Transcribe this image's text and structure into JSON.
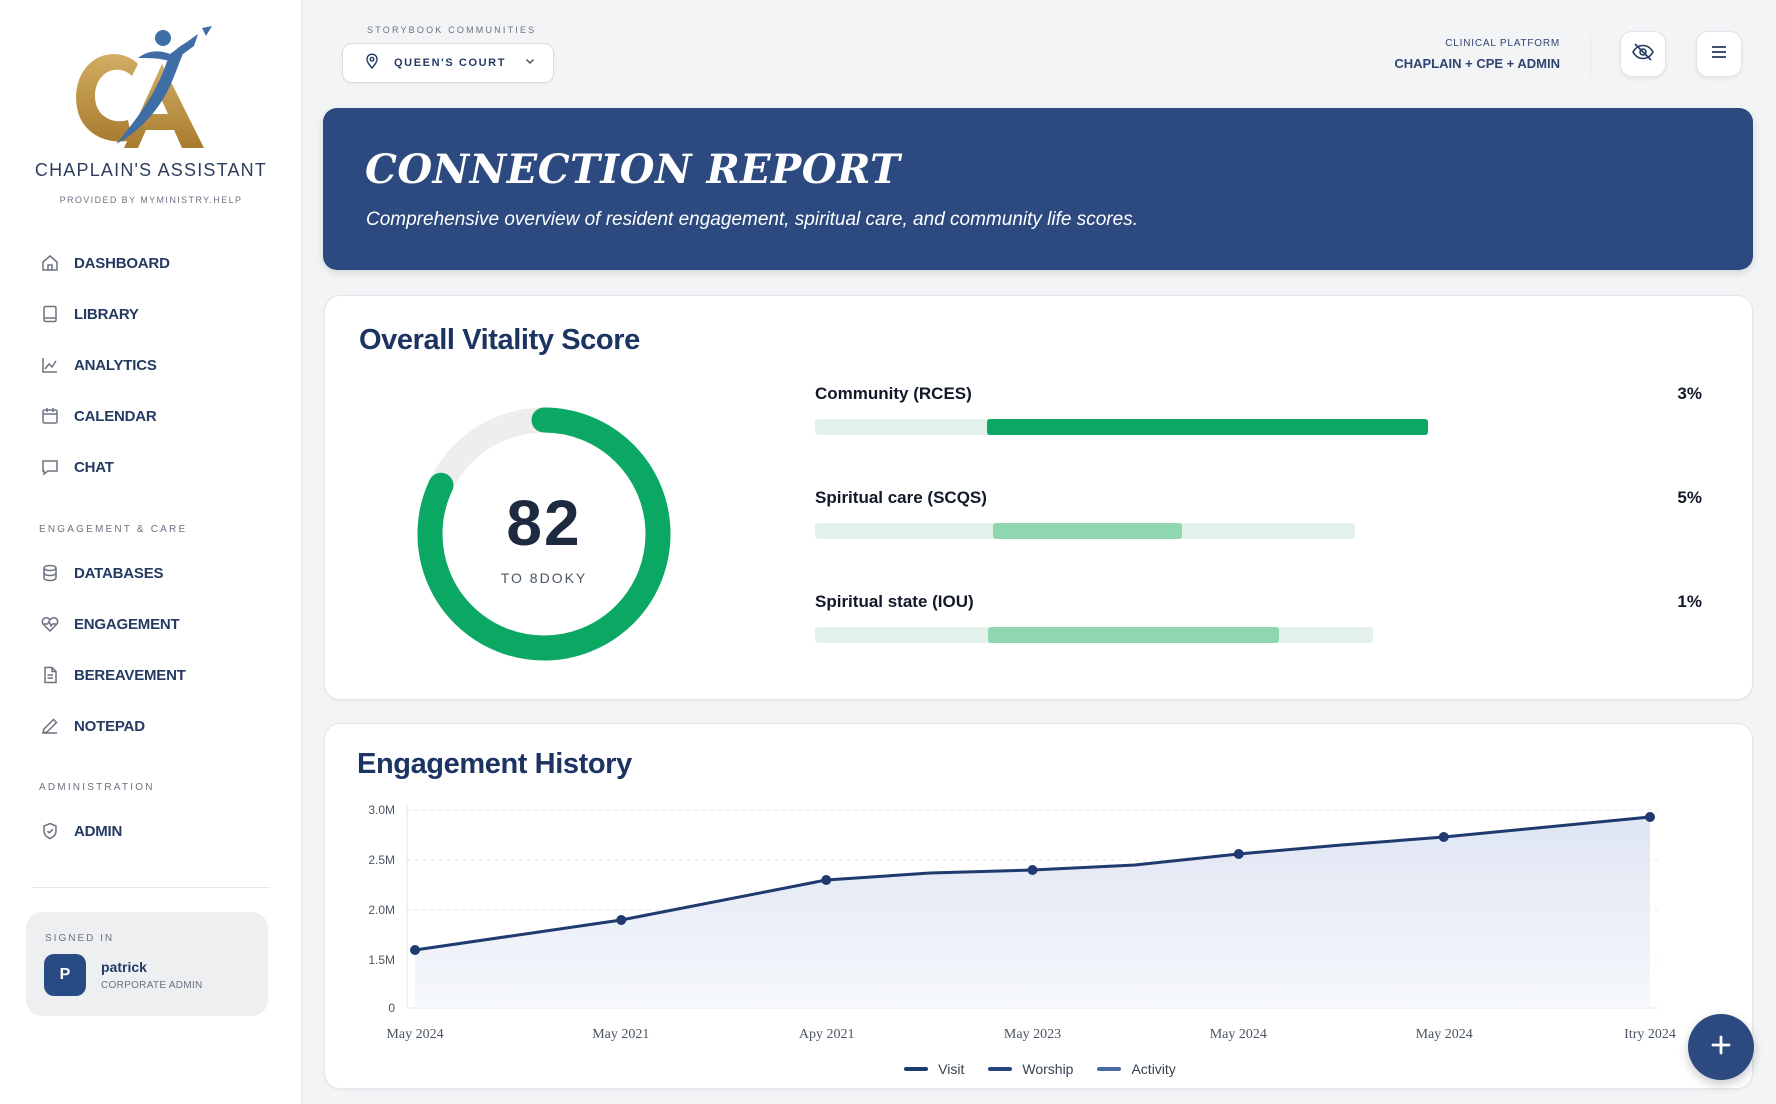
{
  "brand": {
    "name": "CHAPLAIN'S ASSISTANT",
    "provided_by": "PROVIDED BY MYMINISTRY.HELP",
    "logo_icon": "chaplain-assistant-logo",
    "gold": "#b8903f",
    "blue": "#3f6ea6"
  },
  "sidebar": {
    "main_items": [
      {
        "label": "DASHBOARD",
        "icon": "home-icon"
      },
      {
        "label": "LIBRARY",
        "icon": "book-icon"
      },
      {
        "label": "ANALYTICS",
        "icon": "chart-icon"
      },
      {
        "label": "CALENDAR",
        "icon": "calendar-icon"
      },
      {
        "label": "CHAT",
        "icon": "chat-icon"
      }
    ],
    "engagement_section": "ENGAGEMENT & CARE",
    "engagement_items": [
      {
        "label": "DATABASES",
        "icon": "database-icon"
      },
      {
        "label": "ENGAGEMENT",
        "icon": "heart-pulse-icon"
      },
      {
        "label": "BEREAVEMENT",
        "icon": "document-icon"
      },
      {
        "label": "NOTEPAD",
        "icon": "pen-icon"
      }
    ],
    "admin_section": "ADMINISTRATION",
    "admin_items": [
      {
        "label": "ADMIN",
        "icon": "shield-icon"
      }
    ]
  },
  "user": {
    "signed_in_label": "SIGNED IN",
    "initial": "P",
    "name": "patrick",
    "role": "CORPORATE ADMIN"
  },
  "topbar": {
    "community_label": "STORYBOOK COMMUNITIES",
    "community_value": "QUEEN'S COURT",
    "platform_label": "CLINICAL PLATFORM",
    "platform_value": "CHAPLAIN + CPE + ADMIN"
  },
  "hero": {
    "title": "CONNECTION REPORT",
    "subtitle": "Comprehensive overview of resident engagement, spiritual care, and community life scores.",
    "background": "#2c4a7f"
  },
  "vitality": {
    "title": "Overall Vitality Score",
    "score": "82",
    "score_caption": "TO 8DOKY",
    "gauge_fraction": 0.82,
    "gauge_color": "#0aa863",
    "metrics": [
      {
        "label": "Community (RCES)",
        "value": "3%",
        "track_fraction": 0.84,
        "fill_start": 0.28,
        "fill_end": 1.0,
        "color": "#0aa863"
      },
      {
        "label": "Spiritual care (SCQS)",
        "value": "5%",
        "track_fraction": 0.74,
        "fill_start": 0.33,
        "fill_end": 0.68,
        "color": "#8fd6b1"
      },
      {
        "label": "Spiritual state (IOU)",
        "value": "1%",
        "track_fraction": 0.765,
        "fill_start": 0.31,
        "fill_end": 0.83,
        "color": "#8fd6b1"
      }
    ]
  },
  "chart_data": {
    "type": "area",
    "title": "Engagement History",
    "categories": [
      "May 2024",
      "May 2021",
      "Apy 2021",
      "May 2023",
      "May 2024",
      "May 2024",
      "Itry 2024"
    ],
    "y_tick_labels": [
      "0",
      "1.5M",
      "2.0M",
      "2.5M",
      "3.0M"
    ],
    "ylim": [
      0,
      3000000
    ],
    "grid": true,
    "legend_position": "bottom",
    "series": [
      {
        "name": "Visit",
        "color": "#1e3a6e"
      },
      {
        "name": "Worship",
        "color": "#25457d"
      },
      {
        "name": "Activity",
        "color": "#4a6aa3"
      }
    ],
    "points": [
      {
        "x_pos": 0.0,
        "y": 1600000
      },
      {
        "x_pos": 0.167,
        "y": 1900000
      },
      {
        "x_pos": 0.333,
        "y": 2300000
      },
      {
        "x_pos": 0.417,
        "y": 2370000
      },
      {
        "x_pos": 0.5,
        "y": 2400000
      },
      {
        "x_pos": 0.583,
        "y": 2450000
      },
      {
        "x_pos": 0.667,
        "y": 2560000
      },
      {
        "x_pos": 0.75,
        "y": 2650000
      },
      {
        "x_pos": 0.833,
        "y": 2730000
      },
      {
        "x_pos": 1.0,
        "y": 2930000
      }
    ],
    "marker_indices": [
      0,
      1,
      2,
      4,
      6,
      8,
      9
    ]
  }
}
